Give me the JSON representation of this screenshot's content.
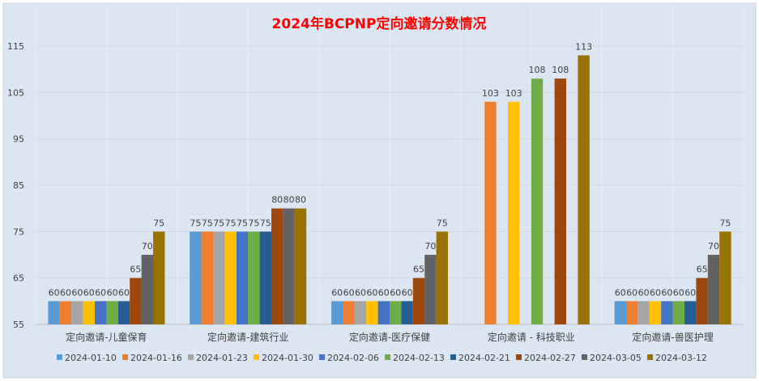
{
  "chart_data": {
    "type": "bar",
    "title": "2024年BCPNP定向邀请分数情况",
    "title_color": "#FF0000",
    "categories": [
      "定向邀请-儿童保育",
      "定向邀请-建筑行业",
      "定向邀请-医疗保健",
      "定向邀请 - 科技职业",
      "定向邀请-兽医护理"
    ],
    "series": [
      {
        "name": "2024-01-10",
        "color": "#5B9BD5",
        "values": [
          60,
          75,
          60,
          null,
          60
        ]
      },
      {
        "name": "2024-01-16",
        "color": "#ED7D31",
        "values": [
          60,
          75,
          60,
          103,
          60
        ]
      },
      {
        "name": "2024-01-23",
        "color": "#A5A5A5",
        "values": [
          60,
          75,
          60,
          null,
          60
        ]
      },
      {
        "name": "2024-01-30",
        "color": "#FFC000",
        "values": [
          60,
          75,
          60,
          103,
          60
        ]
      },
      {
        "name": "2024-02-06",
        "color": "#4472C4",
        "values": [
          60,
          75,
          60,
          null,
          60
        ]
      },
      {
        "name": "2024-02-13",
        "color": "#70AD47",
        "values": [
          60,
          75,
          60,
          108,
          60
        ]
      },
      {
        "name": "2024-02-21",
        "color": "#255E91",
        "values": [
          60,
          75,
          60,
          null,
          60
        ]
      },
      {
        "name": "2024-02-27",
        "color": "#9E480E",
        "values": [
          65,
          80,
          65,
          108,
          65
        ]
      },
      {
        "name": "2024-03-05",
        "color": "#636363",
        "values": [
          70,
          80,
          70,
          null,
          70
        ]
      },
      {
        "name": "2024-03-12",
        "color": "#997300",
        "values": [
          75,
          80,
          75,
          113,
          75
        ]
      }
    ],
    "ylim": [
      55,
      115
    ],
    "yticks": [
      55,
      65,
      75,
      85,
      95,
      105,
      115
    ],
    "xlabel": "",
    "ylabel": "",
    "grid": true,
    "legend": "bottom",
    "data_labels": true
  }
}
